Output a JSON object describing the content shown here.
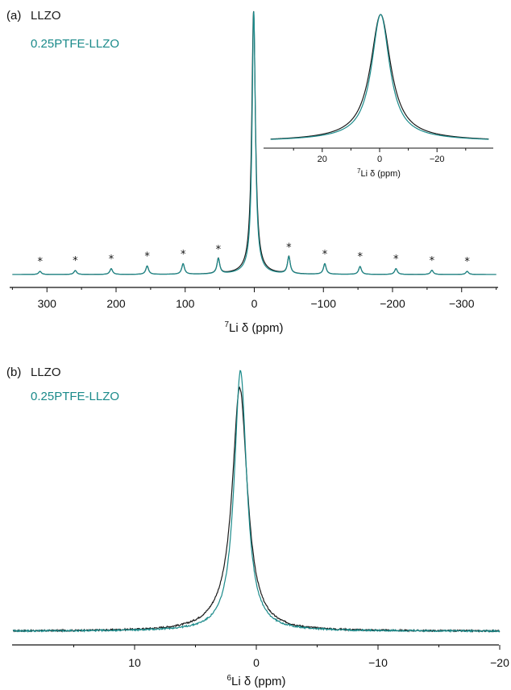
{
  "chart_data": [
    {
      "panel": "(a)",
      "type": "line",
      "xlabel_iso": "7",
      "xlabel_text": "Li δ (ppm)",
      "xlim": [
        350,
        -350
      ],
      "x_reversed": true,
      "x_ticks": [
        300,
        200,
        100,
        0,
        -100,
        -200,
        -300
      ],
      "x_tick_labels": [
        "300",
        "200",
        "100",
        "0",
        "−100",
        "−200",
        "−300"
      ],
      "legend": [
        "LLZO",
        "0.25PTFE-LLZO"
      ],
      "series": [
        {
          "name": "LLZO",
          "color": "#1a1a1a",
          "peak_ppm": 1.0,
          "width_ppm": 3.2
        },
        {
          "name": "0.25PTFE-LLZO",
          "color": "#1a8a8a",
          "peak_ppm": 0.8,
          "width_ppm": 2.8
        }
      ],
      "spinning_sidebands_ppm": [
        310,
        259,
        207,
        155,
        103,
        52,
        -50,
        -102,
        -153,
        -205,
        -257,
        -308
      ],
      "spinning_sideband_rel_heights": [
        0.012,
        0.015,
        0.022,
        0.032,
        0.04,
        0.058,
        0.065,
        0.04,
        0.03,
        0.022,
        0.016,
        0.012
      ],
      "spinning_sideband_marker": "*",
      "inset": {
        "xlim": [
          38,
          -38
        ],
        "x_ticks": [
          20,
          0,
          -20
        ],
        "x_tick_labels": [
          "20",
          "0",
          "−20"
        ],
        "xlabel_iso": "7",
        "xlabel_text": "Li δ (ppm)"
      }
    },
    {
      "panel": "(b)",
      "type": "line",
      "xlabel_iso": "6",
      "xlabel_text": "Li δ (ppm)",
      "xlim": [
        20,
        -20
      ],
      "x_reversed": true,
      "x_ticks": [
        10,
        0,
        -10,
        -20
      ],
      "x_tick_labels": [
        "10",
        "0",
        "−10",
        "−20"
      ],
      "legend": [
        "LLZO",
        "0.25PTFE-LLZO"
      ],
      "series": [
        {
          "name": "LLZO",
          "color": "#1a1a1a",
          "peak_ppm": 1.35,
          "width_ppm": 0.75,
          "height": 0.93
        },
        {
          "name": "0.25PTFE-LLZO",
          "color": "#1a8a8a",
          "peak_ppm": 1.3,
          "width_ppm": 0.62,
          "height": 1.0
        }
      ]
    }
  ],
  "panel_a": {
    "label": "(a)",
    "legend_1": "LLZO",
    "legend_2": "0.25PTFE-LLZO",
    "xlabel_iso": "7",
    "xlabel_text": "Li δ (ppm)"
  },
  "panel_b": {
    "label": "(b)",
    "legend_1": "LLZO",
    "legend_2": "0.25PTFE-LLZO",
    "xlabel_iso": "6",
    "xlabel_text": "Li δ (ppm)"
  },
  "inset": {
    "xlabel_iso": "7",
    "xlabel_text": "Li δ (ppm)"
  },
  "colors": {
    "llzo": "#1a1a1a",
    "ptfe": "#1a8a8a",
    "axis": "#111111"
  }
}
